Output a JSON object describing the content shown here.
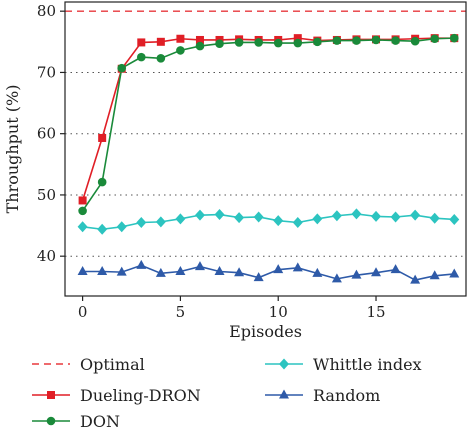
{
  "chart_data": {
    "type": "line",
    "xlabel": "Episodes",
    "ylabel": "Throughput (%)",
    "xlim": [
      -0.9,
      19.6
    ],
    "ylim": [
      33.5,
      81.5
    ],
    "x_ticks": [
      0,
      5,
      10,
      15
    ],
    "y_ticks": [
      40,
      50,
      60,
      70,
      80
    ],
    "grid": "horizontal dotted at y ticks",
    "legend_position": "bottom, two columns",
    "reference_lines": [
      {
        "name": "Optimal",
        "y": 80,
        "color": "#e8383d",
        "style": "dashed"
      }
    ],
    "x": [
      0,
      1,
      2,
      3,
      4,
      5,
      6,
      7,
      8,
      9,
      10,
      11,
      12,
      13,
      14,
      15,
      16,
      17,
      18,
      19
    ],
    "series": [
      {
        "name": "Dueling-DRON",
        "color": "#e01e26",
        "marker": "square",
        "values": [
          49.1,
          59.3,
          70.6,
          74.9,
          75.0,
          75.5,
          75.3,
          75.3,
          75.4,
          75.3,
          75.3,
          75.6,
          75.2,
          75.3,
          75.4,
          75.4,
          75.4,
          75.5,
          75.6,
          75.6
        ]
      },
      {
        "name": "DON",
        "color": "#1a8a3a",
        "marker": "circle",
        "values": [
          47.4,
          52.1,
          70.7,
          72.5,
          72.3,
          73.6,
          74.3,
          74.7,
          74.9,
          74.9,
          74.8,
          74.8,
          75.0,
          75.2,
          75.2,
          75.3,
          75.2,
          75.1,
          75.5,
          75.6
        ]
      },
      {
        "name": "Whittle index",
        "color": "#2cc4c0",
        "marker": "diamond",
        "values": [
          44.8,
          44.4,
          44.8,
          45.5,
          45.6,
          46.1,
          46.7,
          46.8,
          46.3,
          46.4,
          45.8,
          45.5,
          46.1,
          46.6,
          46.9,
          46.5,
          46.4,
          46.7,
          46.2,
          46.0
        ]
      },
      {
        "name": "Random",
        "color": "#2e5aa8",
        "marker": "triangle",
        "values": [
          37.5,
          37.5,
          37.4,
          38.5,
          37.2,
          37.5,
          38.3,
          37.5,
          37.3,
          36.5,
          37.8,
          38.1,
          37.2,
          36.3,
          36.9,
          37.3,
          37.8,
          36.1,
          36.8,
          37.1
        ]
      }
    ],
    "legend": [
      {
        "label": "Optimal",
        "ref": "Optimal"
      },
      {
        "label": "Dueling-DRON",
        "ref": "Dueling-DRON"
      },
      {
        "label": "DON",
        "ref": "DON"
      },
      {
        "label": "Whittle index",
        "ref": "Whittle index"
      },
      {
        "label": "Random",
        "ref": "Random"
      }
    ]
  }
}
